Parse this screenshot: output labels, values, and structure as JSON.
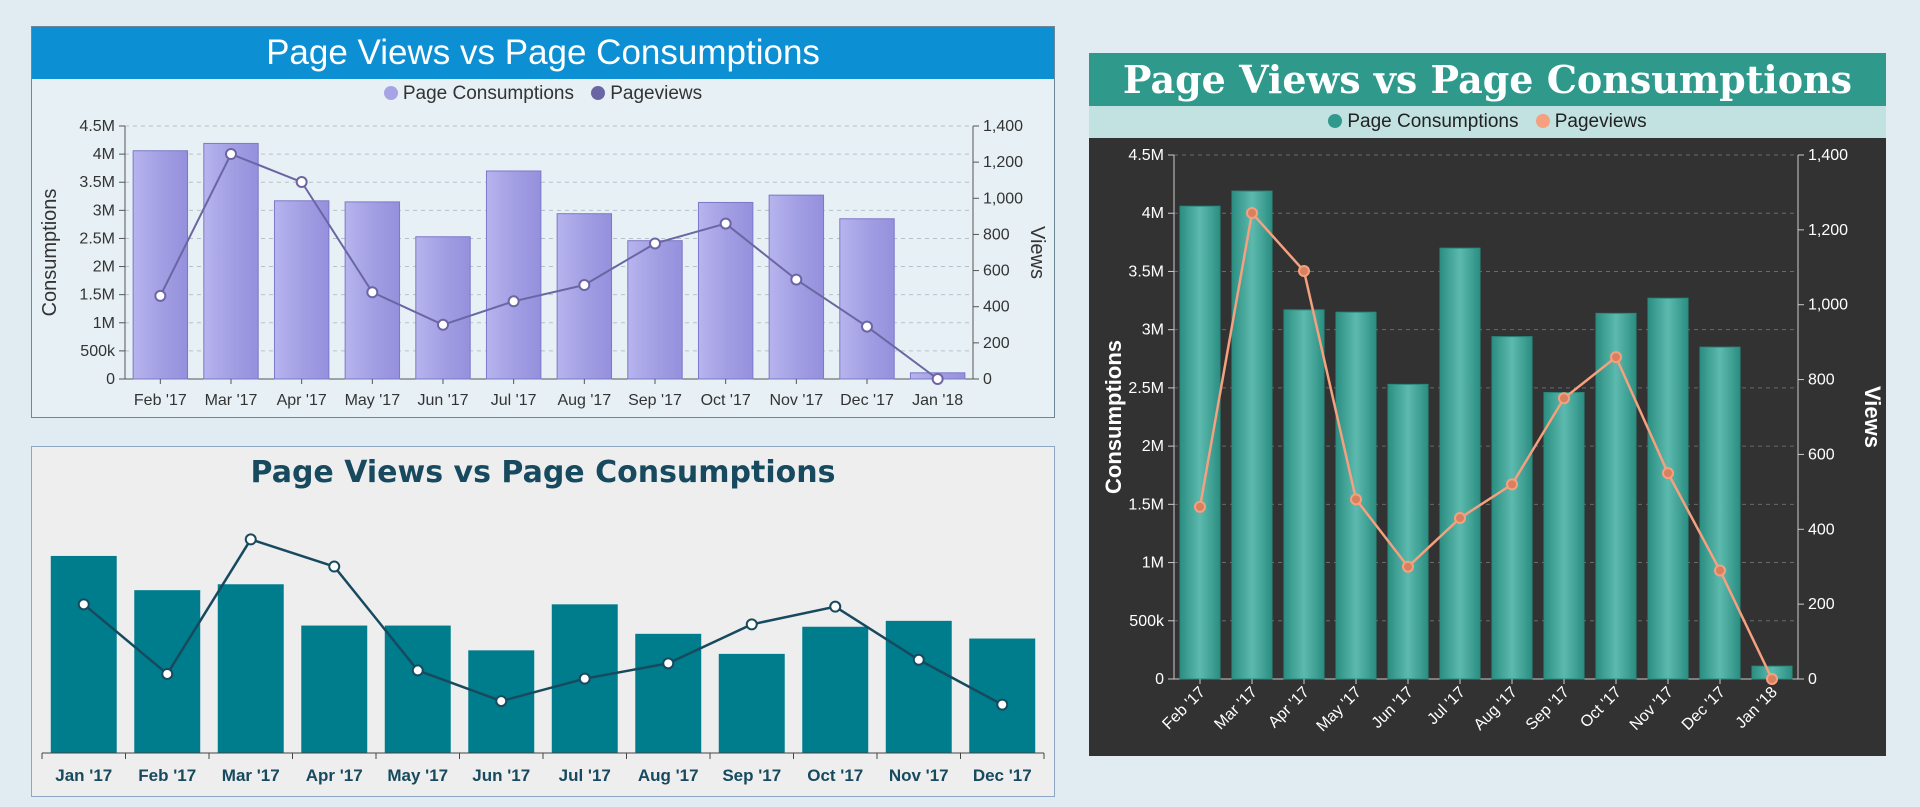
{
  "chart_data": [
    {
      "type": "bar",
      "title": "Page Views vs Page Consumptions",
      "categories": [
        "Feb '17",
        "Mar '17",
        "Apr '17",
        "May '17",
        "Jun '17",
        "Jul '17",
        "Aug '17",
        "Sep '17",
        "Oct '17",
        "Nov '17",
        "Dec '17",
        "Jan '18"
      ],
      "series": [
        {
          "name": "Page Consumptions",
          "axis": "left",
          "type": "bar",
          "color": "#a7a4e6",
          "values": [
            4060000,
            4190000,
            3170000,
            3150000,
            2530000,
            3700000,
            2940000,
            2460000,
            3140000,
            3270000,
            2850000,
            110000
          ]
        },
        {
          "name": "Pageviews",
          "axis": "right",
          "type": "line",
          "color": "#6b66a3",
          "values": [
            460,
            1245,
            1090,
            480,
            300,
            430,
            520,
            750,
            860,
            550,
            290,
            0
          ]
        }
      ],
      "ylabel": "Consumptions",
      "y2label": "Views",
      "ylim": [
        0,
        4500000
      ],
      "y2lim": [
        0,
        1400
      ],
      "yticks": [
        "0",
        "500k",
        "1M",
        "1.5M",
        "2M",
        "2.5M",
        "3M",
        "3.5M",
        "4M",
        "4.5M"
      ],
      "y2ticks": [
        "0",
        "200",
        "400",
        "600",
        "800",
        "1,000",
        "1,200",
        "1,400"
      ],
      "grid": true,
      "legend": "top"
    },
    {
      "type": "bar",
      "title": "Page Views vs Page Consumptions",
      "categories": [
        "Jan '17",
        "Feb '17",
        "Mar '17",
        "Apr '17",
        "May '17",
        "Jun '17",
        "Jul '17",
        "Aug '17",
        "Sep '17",
        "Oct '17",
        "Nov '17",
        "Dec '17"
      ],
      "series": [
        {
          "type": "bar",
          "color": "#007d8c",
          "values": [
            167,
            138,
            143,
            108,
            108,
            87,
            126,
            101,
            84,
            107,
            112,
            97
          ]
        },
        {
          "type": "line",
          "color": "#174a5e",
          "values": [
            126,
            67,
            181,
            158,
            70,
            44,
            63,
            76,
            109,
            124,
            79,
            41
          ]
        }
      ],
      "ylim": [
        0,
        200
      ],
      "grid": false,
      "legend": "none"
    },
    {
      "type": "bar",
      "title": "Page Views vs Page Consumptions",
      "categories": [
        "Feb '17",
        "Mar '17",
        "Apr '17",
        "May '17",
        "Jun '17",
        "Jul '17",
        "Aug '17",
        "Sep '17",
        "Oct '17",
        "Nov '17",
        "Dec '17",
        "Jan '18"
      ],
      "series": [
        {
          "name": "Page Consumptions",
          "axis": "left",
          "type": "bar",
          "color": "#2f9a8c",
          "values": [
            4060000,
            4190000,
            3170000,
            3150000,
            2530000,
            3700000,
            2940000,
            2460000,
            3140000,
            3270000,
            2850000,
            110000
          ]
        },
        {
          "name": "Pageviews",
          "axis": "right",
          "type": "line",
          "color": "#f5a07f",
          "values": [
            460,
            1245,
            1090,
            480,
            300,
            430,
            520,
            750,
            860,
            550,
            290,
            0
          ]
        }
      ],
      "ylabel": "Consumptions",
      "y2label": "Views",
      "ylim": [
        0,
        4500000
      ],
      "y2lim": [
        0,
        1400
      ],
      "yticks": [
        "0",
        "500k",
        "1M",
        "1.5M",
        "2M",
        "2.5M",
        "3M",
        "3.5M",
        "4M",
        "4.5M"
      ],
      "y2ticks": [
        "0",
        "200",
        "400",
        "600",
        "800",
        "1,000",
        "1,200",
        "1,400"
      ],
      "grid": true,
      "legend": "top"
    }
  ]
}
